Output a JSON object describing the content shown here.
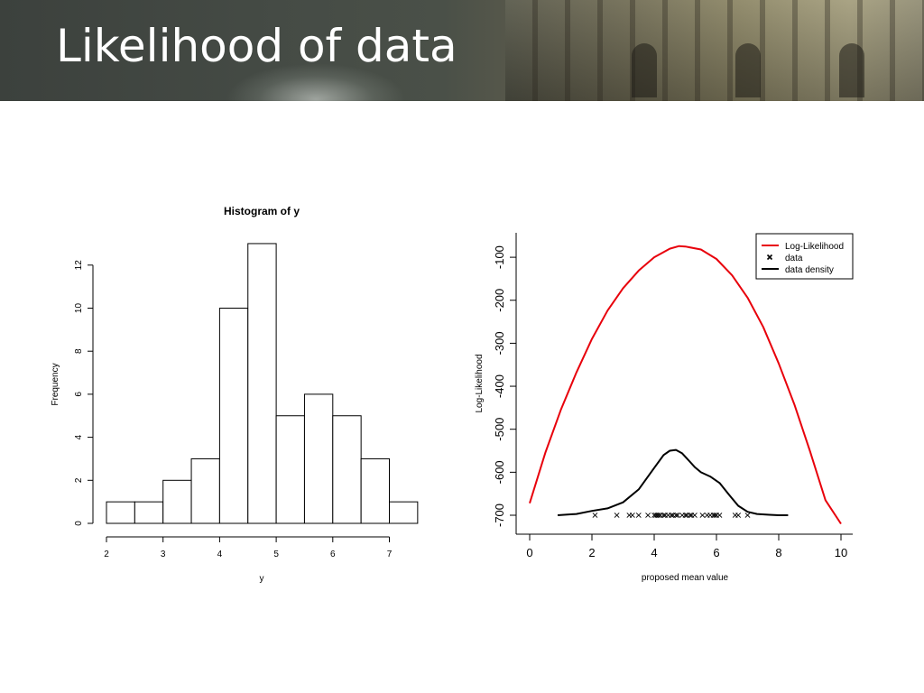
{
  "slide": {
    "title": "Likelihood of data"
  },
  "chart_data": [
    {
      "type": "bar",
      "title": "Histogram of y",
      "xlabel": "y",
      "ylabel": "Frequency",
      "bin_edges": [
        2.0,
        2.5,
        3.0,
        3.5,
        4.0,
        4.5,
        5.0,
        5.5,
        6.0,
        6.5,
        7.0,
        7.5
      ],
      "values": [
        1,
        1,
        2,
        3,
        10,
        13,
        5,
        6,
        5,
        3,
        1
      ],
      "xlim": [
        2,
        7.5
      ],
      "ylim": [
        0,
        13
      ],
      "xticks": [
        "2",
        "3",
        "4",
        "5",
        "6",
        "7"
      ],
      "yticks": [
        "0",
        "2",
        "4",
        "6",
        "8",
        "10",
        "12"
      ]
    },
    {
      "type": "line",
      "title": "",
      "xlabel": "proposed mean value",
      "ylabel": "Log-Likelihood",
      "xlim": [
        0,
        10
      ],
      "ylim": [
        -700,
        -100
      ],
      "xticks": [
        "0",
        "2",
        "4",
        "6",
        "8",
        "10"
      ],
      "yticks": [
        "-100",
        "-200",
        "-300",
        "-400",
        "-500",
        "-600",
        "-700"
      ],
      "legend": {
        "placement": "top-right",
        "entries": [
          "Log-Likelihood",
          "data",
          "data density"
        ]
      },
      "series": [
        {
          "name": "Log-Likelihood",
          "color": "#e8000b",
          "x": [
            0,
            0.5,
            1,
            1.5,
            2,
            2.5,
            3,
            3.5,
            4,
            4.5,
            4.8,
            5,
            5.5,
            6,
            6.5,
            7,
            7.5,
            8,
            8.5,
            9,
            9.5,
            10
          ],
          "y": [
            -672,
            -555,
            -455,
            -368,
            -290,
            -224,
            -172,
            -131,
            -100,
            -80,
            -74,
            -75,
            -82,
            -104,
            -142,
            -194,
            -262,
            -347,
            -442,
            -550,
            -665,
            -720
          ]
        },
        {
          "name": "data",
          "color": "#000000",
          "marker": "x",
          "x": [
            2.1,
            2.8,
            3.2,
            3.3,
            3.5,
            3.8,
            4.0,
            4.05,
            4.1,
            4.15,
            4.2,
            4.3,
            4.35,
            4.45,
            4.55,
            4.6,
            4.7,
            4.75,
            4.9,
            5.0,
            5.05,
            5.15,
            5.2,
            5.3,
            5.55,
            5.7,
            5.8,
            5.9,
            5.95,
            6.0,
            6.1,
            6.6,
            6.7,
            7.0
          ],
          "y": [
            -700,
            -700,
            -700,
            -700,
            -700,
            -700,
            -700,
            -700,
            -700,
            -700,
            -700,
            -700,
            -700,
            -700,
            -700,
            -700,
            -700,
            -700,
            -700,
            -700,
            -700,
            -700,
            -700,
            -700,
            -700,
            -700,
            -700,
            -700,
            -700,
            -700,
            -700,
            -700,
            -700,
            -700
          ]
        },
        {
          "name": "data density",
          "color": "#000000",
          "x": [
            0.9,
            1.5,
            2.0,
            2.5,
            3.0,
            3.5,
            4.0,
            4.3,
            4.5,
            4.7,
            4.9,
            5.1,
            5.3,
            5.5,
            5.8,
            6.1,
            6.4,
            6.7,
            7.0,
            7.3,
            7.7,
            8.0,
            8.3
          ],
          "y": [
            -700,
            -697,
            -690,
            -684,
            -670,
            -640,
            -590,
            -560,
            -550,
            -548,
            -556,
            -572,
            -588,
            -600,
            -610,
            -625,
            -652,
            -678,
            -692,
            -697,
            -699,
            -700,
            -700
          ]
        }
      ]
    }
  ]
}
